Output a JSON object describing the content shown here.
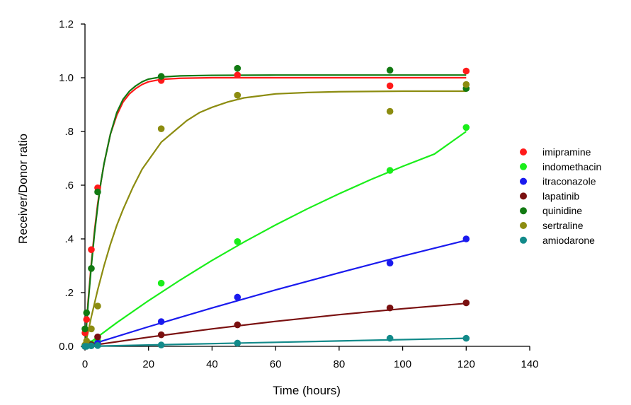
{
  "chart_data": {
    "type": "scatter",
    "title": "",
    "xlabel": "Time (hours)",
    "ylabel": "Receiver/Donor ratio",
    "xlim": [
      0,
      140
    ],
    "ylim": [
      0,
      1.2
    ],
    "x_ticks": [
      0,
      20,
      40,
      60,
      80,
      100,
      120,
      140
    ],
    "x_tick_labels": [
      "0",
      "20",
      "40",
      "60",
      "80",
      "100",
      "120",
      "140"
    ],
    "y_ticks": [
      0,
      0.2,
      0.4,
      0.6,
      0.8,
      1.0,
      1.2
    ],
    "y_tick_labels": [
      "0.0",
      ".2",
      ".4",
      ".6",
      ".8",
      "1.0",
      "1.2"
    ],
    "grid": false,
    "legend_position": "right",
    "series": [
      {
        "name": "imipramine",
        "color": "#ff1a1a",
        "points": [
          [
            0,
            0.05
          ],
          [
            0.5,
            0.1
          ],
          [
            2,
            0.36
          ],
          [
            4,
            0.59
          ],
          [
            24,
            0.99
          ],
          [
            48,
            1.01
          ],
          [
            96,
            0.97
          ],
          [
            120,
            1.025
          ]
        ],
        "fit_curve": [
          [
            0,
            0
          ],
          [
            1,
            0.17
          ],
          [
            2,
            0.31
          ],
          [
            3,
            0.43
          ],
          [
            4,
            0.53
          ],
          [
            5,
            0.61
          ],
          [
            6,
            0.68
          ],
          [
            8,
            0.79
          ],
          [
            10,
            0.86
          ],
          [
            12,
            0.91
          ],
          [
            14,
            0.94
          ],
          [
            16,
            0.96
          ],
          [
            18,
            0.975
          ],
          [
            20,
            0.985
          ],
          [
            24,
            0.994
          ],
          [
            30,
            0.998
          ],
          [
            40,
            1.0
          ],
          [
            60,
            1.0
          ],
          [
            90,
            1.0
          ],
          [
            120,
            1.0
          ]
        ]
      },
      {
        "name": "indomethacin",
        "color": "#1aee1a",
        "points": [
          [
            0,
            0.0
          ],
          [
            0.5,
            0.005
          ],
          [
            2,
            0.01
          ],
          [
            4,
            0.02
          ],
          [
            24,
            0.235
          ],
          [
            48,
            0.39
          ],
          [
            96,
            0.655
          ],
          [
            120,
            0.815
          ]
        ],
        "fit_curve": [
          [
            0,
            0
          ],
          [
            10,
            0.088
          ],
          [
            20,
            0.17
          ],
          [
            30,
            0.247
          ],
          [
            40,
            0.32
          ],
          [
            50,
            0.388
          ],
          [
            60,
            0.452
          ],
          [
            70,
            0.512
          ],
          [
            80,
            0.568
          ],
          [
            90,
            0.621
          ],
          [
            100,
            0.67
          ],
          [
            110,
            0.716
          ],
          [
            120,
            0.8
          ]
        ]
      },
      {
        "name": "itraconazole",
        "color": "#1a1aee",
        "points": [
          [
            0,
            0.0
          ],
          [
            0.5,
            0.002
          ],
          [
            2,
            0.005
          ],
          [
            4,
            0.012
          ],
          [
            24,
            0.092
          ],
          [
            48,
            0.183
          ],
          [
            96,
            0.31
          ],
          [
            120,
            0.4
          ]
        ],
        "fit_curve": [
          [
            0,
            0
          ],
          [
            20,
            0.073
          ],
          [
            40,
            0.143
          ],
          [
            60,
            0.21
          ],
          [
            80,
            0.274
          ],
          [
            100,
            0.336
          ],
          [
            120,
            0.395
          ]
        ]
      },
      {
        "name": "lapatinib",
        "color": "#7a1010",
        "points": [
          [
            0,
            0.0
          ],
          [
            0.5,
            0.002
          ],
          [
            2,
            0.006
          ],
          [
            4,
            0.035
          ],
          [
            24,
            0.043
          ],
          [
            48,
            0.08
          ],
          [
            96,
            0.143
          ],
          [
            120,
            0.162
          ]
        ],
        "fit_curve": [
          [
            0,
            0
          ],
          [
            20,
            0.034
          ],
          [
            40,
            0.065
          ],
          [
            60,
            0.093
          ],
          [
            80,
            0.118
          ],
          [
            100,
            0.14
          ],
          [
            120,
            0.16
          ]
        ]
      },
      {
        "name": "quinidine",
        "color": "#127a12",
        "points": [
          [
            0,
            0.065
          ],
          [
            0.5,
            0.125
          ],
          [
            2,
            0.29
          ],
          [
            4,
            0.575
          ],
          [
            24,
            1.005
          ],
          [
            48,
            1.035
          ],
          [
            96,
            1.028
          ],
          [
            120,
            0.96
          ]
        ],
        "fit_curve": [
          [
            0,
            0
          ],
          [
            1,
            0.16
          ],
          [
            2,
            0.3
          ],
          [
            3,
            0.42
          ],
          [
            4,
            0.52
          ],
          [
            5,
            0.61
          ],
          [
            6,
            0.68
          ],
          [
            8,
            0.79
          ],
          [
            10,
            0.87
          ],
          [
            12,
            0.92
          ],
          [
            14,
            0.95
          ],
          [
            16,
            0.97
          ],
          [
            18,
            0.985
          ],
          [
            20,
            0.995
          ],
          [
            24,
            1.003
          ],
          [
            30,
            1.007
          ],
          [
            40,
            1.009
          ],
          [
            60,
            1.01
          ],
          [
            90,
            1.01
          ],
          [
            120,
            1.01
          ]
        ]
      },
      {
        "name": "sertraline",
        "color": "#8c8c10",
        "points": [
          [
            0,
            0.005
          ],
          [
            0.5,
            0.02
          ],
          [
            2,
            0.065
          ],
          [
            4,
            0.15
          ],
          [
            24,
            0.81
          ],
          [
            48,
            0.935
          ],
          [
            96,
            0.875
          ],
          [
            120,
            0.975
          ]
        ],
        "fit_curve": [
          [
            0,
            0
          ],
          [
            2,
            0.11
          ],
          [
            4,
            0.21
          ],
          [
            6,
            0.3
          ],
          [
            8,
            0.38
          ],
          [
            10,
            0.45
          ],
          [
            12,
            0.51
          ],
          [
            15,
            0.59
          ],
          [
            18,
            0.66
          ],
          [
            21,
            0.71
          ],
          [
            24,
            0.76
          ],
          [
            28,
            0.8
          ],
          [
            32,
            0.84
          ],
          [
            36,
            0.87
          ],
          [
            40,
            0.89
          ],
          [
            45,
            0.91
          ],
          [
            50,
            0.925
          ],
          [
            60,
            0.94
          ],
          [
            70,
            0.945
          ],
          [
            80,
            0.948
          ],
          [
            100,
            0.95
          ],
          [
            120,
            0.95
          ]
        ]
      },
      {
        "name": "amiodarone",
        "color": "#128a8a",
        "points": [
          [
            0,
            0.0
          ],
          [
            0.5,
            0.0
          ],
          [
            2,
            0.002
          ],
          [
            4,
            0.003
          ],
          [
            24,
            0.005
          ],
          [
            48,
            0.012
          ],
          [
            96,
            0.03
          ],
          [
            120,
            0.03
          ]
        ],
        "fit_curve": [
          [
            0,
            0
          ],
          [
            20,
            0.005
          ],
          [
            40,
            0.01
          ],
          [
            60,
            0.015
          ],
          [
            80,
            0.02
          ],
          [
            100,
            0.025
          ],
          [
            120,
            0.03
          ]
        ]
      }
    ]
  }
}
